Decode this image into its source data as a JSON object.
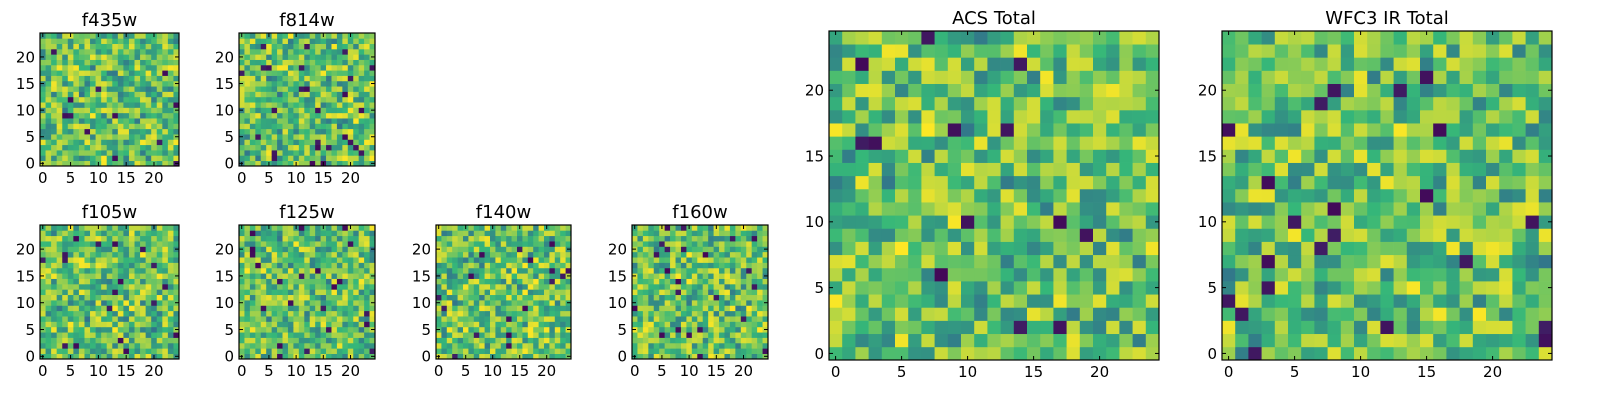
{
  "colors": {
    "background": "#ffffff",
    "axis": "#000000",
    "colormap": [
      "#440154",
      "#31688e",
      "#35b779",
      "#fde725"
    ]
  },
  "chart_data": [
    {
      "type": "heatmap",
      "title": "f435w",
      "grid": false,
      "xlim": [
        0,
        24
      ],
      "ylim": [
        0,
        24
      ],
      "xticks": [
        0,
        5,
        10,
        15,
        20
      ],
      "yticks": [
        0,
        5,
        10,
        15,
        20
      ],
      "shape": [
        25,
        25
      ],
      "colormap": "viridis"
    },
    {
      "type": "heatmap",
      "title": "f814w",
      "grid": false,
      "xlim": [
        0,
        24
      ],
      "ylim": [
        0,
        24
      ],
      "xticks": [
        0,
        5,
        10,
        15,
        20
      ],
      "yticks": [
        0,
        5,
        10,
        15,
        20
      ],
      "shape": [
        25,
        25
      ],
      "colormap": "viridis"
    },
    {
      "type": "heatmap",
      "title": "f105w",
      "grid": false,
      "xlim": [
        0,
        24
      ],
      "ylim": [
        0,
        24
      ],
      "xticks": [
        0,
        5,
        10,
        15,
        20
      ],
      "yticks": [
        0,
        5,
        10,
        15,
        20
      ],
      "shape": [
        25,
        25
      ],
      "colormap": "viridis"
    },
    {
      "type": "heatmap",
      "title": "f125w",
      "grid": false,
      "xlim": [
        0,
        24
      ],
      "ylim": [
        0,
        24
      ],
      "xticks": [
        0,
        5,
        10,
        15,
        20
      ],
      "yticks": [
        0,
        5,
        10,
        15,
        20
      ],
      "shape": [
        25,
        25
      ],
      "colormap": "viridis"
    },
    {
      "type": "heatmap",
      "title": "f140w",
      "grid": false,
      "xlim": [
        0,
        24
      ],
      "ylim": [
        0,
        24
      ],
      "xticks": [
        0,
        5,
        10,
        15,
        20
      ],
      "yticks": [
        0,
        5,
        10,
        15,
        20
      ],
      "shape": [
        25,
        25
      ],
      "colormap": "viridis"
    },
    {
      "type": "heatmap",
      "title": "f160w",
      "grid": false,
      "xlim": [
        0,
        24
      ],
      "ylim": [
        0,
        24
      ],
      "xticks": [
        0,
        5,
        10,
        15,
        20
      ],
      "yticks": [
        0,
        5,
        10,
        15,
        20
      ],
      "shape": [
        25,
        25
      ],
      "colormap": "viridis"
    },
    {
      "type": "heatmap",
      "title": "ACS Total",
      "grid": false,
      "xlim": [
        0,
        24
      ],
      "ylim": [
        0,
        24
      ],
      "xticks": [
        0,
        5,
        10,
        15,
        20
      ],
      "yticks": [
        0,
        5,
        10,
        15,
        20
      ],
      "shape": [
        25,
        25
      ],
      "colormap": "viridis"
    },
    {
      "type": "heatmap",
      "title": "WFC3 IR Total",
      "grid": false,
      "xlim": [
        0,
        24
      ],
      "ylim": [
        0,
        24
      ],
      "xticks": [
        0,
        5,
        10,
        15,
        20
      ],
      "yticks": [
        0,
        5,
        10,
        15,
        20
      ],
      "shape": [
        25,
        25
      ],
      "colormap": "viridis"
    }
  ]
}
